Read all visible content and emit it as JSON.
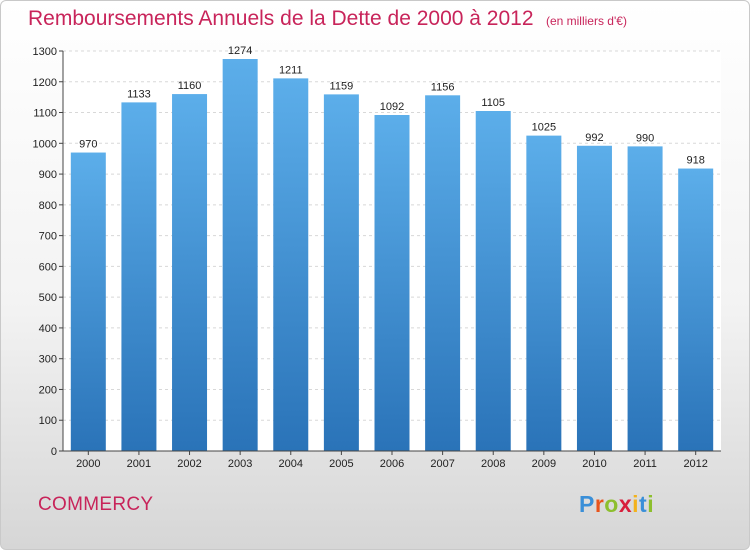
{
  "header": {
    "title": "Remboursements Annuels de la Dette de 2000 à 2012",
    "subtitle": "(en milliers d'€)"
  },
  "footer": {
    "city": "COMMERCY",
    "logo_letters": [
      "P",
      "r",
      "o",
      "x",
      "i",
      "t",
      "i"
    ],
    "logo_colors": [
      "#3a8fd8",
      "#e8541c",
      "#8dbf2e",
      "#d81f3c",
      "#f3b21c",
      "#3a8fd8",
      "#8dbf2e"
    ]
  },
  "colors": {
    "bar_top": "#5caeea",
    "bar_bottom": "#2a73b8",
    "title": "#c8245a"
  },
  "chart_data": {
    "type": "bar",
    "title": "Remboursements Annuels de la Dette de 2000 à 2012",
    "subtitle": "(en milliers d'€)",
    "xlabel": "",
    "ylabel": "",
    "categories": [
      "2000",
      "2001",
      "2002",
      "2003",
      "2004",
      "2005",
      "2006",
      "2007",
      "2008",
      "2009",
      "2010",
      "2011",
      "2012"
    ],
    "values": [
      970,
      1133,
      1160,
      1274,
      1211,
      1159,
      1092,
      1156,
      1105,
      1025,
      992,
      990,
      918
    ],
    "ylim": [
      0,
      1300
    ],
    "yticks": [
      0,
      100,
      200,
      300,
      400,
      500,
      600,
      700,
      800,
      900,
      1000,
      1100,
      1200,
      1300
    ],
    "grid": true,
    "legend": "none"
  }
}
